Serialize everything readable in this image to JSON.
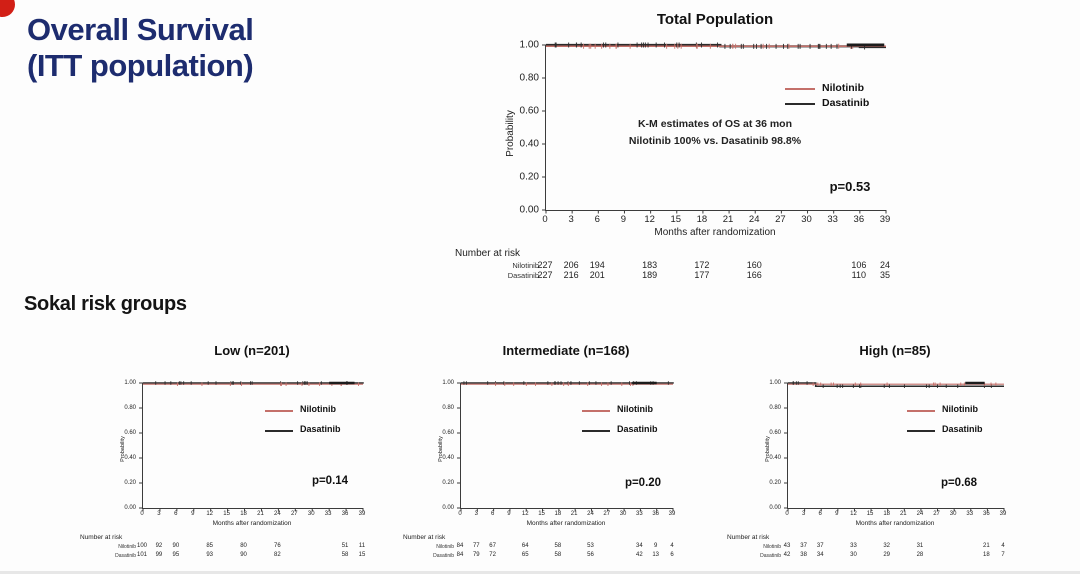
{
  "slide": {
    "title_line1": "Overall Survival",
    "title_line2": "(ITT population)",
    "section_heading": "Sokal risk groups"
  },
  "colors": {
    "accent_red": "#d21f16",
    "title_navy": "#1d2c6f",
    "nilotinib": "#c4706a",
    "dasatinib": "#2b2b2b"
  },
  "chart_data": [
    {
      "id": "total",
      "type": "line",
      "km": true,
      "title": "Total Population",
      "xlabel": "Months after randomization",
      "ylabel": "Probability",
      "xticks": [
        0,
        3,
        6,
        9,
        12,
        15,
        18,
        21,
        24,
        27,
        30,
        33,
        36,
        39
      ],
      "yticks": [
        "1.00",
        "0.80",
        "0.60",
        "0.40",
        "0.20",
        "0.00"
      ],
      "xlim": [
        0,
        39
      ],
      "ylim": [
        0,
        1
      ],
      "grid": false,
      "legend_position": "upper right inside",
      "legend": [
        "Nilotinib",
        "Dasatinib"
      ],
      "annotation": [
        "K-M estimates of OS at 36 mon",
        "Nilotinib 100% vs. Dasatinib 98.8%"
      ],
      "p_value": "p=0.53",
      "series": [
        {
          "name": "Nilotinib",
          "points": [
            [
              0,
              1.0
            ],
            [
              39,
              1.0
            ]
          ]
        },
        {
          "name": "Dasatinib",
          "points": [
            [
              0,
              1.0
            ],
            [
              20,
              0.992
            ],
            [
              36,
              0.988
            ],
            [
              39,
              0.988
            ]
          ]
        }
      ],
      "number_at_risk": {
        "label": "Number at risk",
        "months": [
          0,
          3,
          6,
          12,
          18,
          24,
          36,
          39
        ],
        "rows": [
          {
            "name": "Nilotinib",
            "values": [
              227,
              206,
              194,
              183,
              172,
              160,
              106,
              24
            ]
          },
          {
            "name": "Dasatinib",
            "values": [
              227,
              216,
              201,
              189,
              177,
              166,
              110,
              35
            ]
          }
        ]
      }
    },
    {
      "id": "low",
      "type": "line",
      "km": true,
      "title": "Low (n=201)",
      "xlabel": "Months after randomization",
      "ylabel": "Probability",
      "xticks": [
        0,
        3,
        6,
        9,
        12,
        15,
        18,
        21,
        24,
        27,
        30,
        33,
        36,
        39
      ],
      "yticks": [
        "1.00",
        "0.80",
        "0.60",
        "0.40",
        "0.20",
        "0.00"
      ],
      "xlim": [
        0,
        39
      ],
      "ylim": [
        0,
        1
      ],
      "grid": false,
      "legend_position": "upper right inside",
      "legend": [
        "Nilotinib",
        "Dasatinib"
      ],
      "p_value": "p=0.14",
      "series": [
        {
          "name": "Nilotinib",
          "points": [
            [
              0,
              1.0
            ],
            [
              39,
              1.0
            ]
          ]
        },
        {
          "name": "Dasatinib",
          "points": [
            [
              0,
              1.0
            ],
            [
              39,
              0.995
            ]
          ]
        }
      ],
      "number_at_risk": {
        "label": "Number at risk",
        "months": [
          0,
          3,
          6,
          12,
          18,
          24,
          36,
          39
        ],
        "rows": [
          {
            "name": "Nilotinib",
            "values": [
              100,
              92,
              90,
              85,
              80,
              76,
              51,
              11
            ]
          },
          {
            "name": "Dasatinib",
            "values": [
              101,
              99,
              95,
              93,
              90,
              82,
              58,
              15
            ]
          }
        ]
      }
    },
    {
      "id": "intermediate",
      "type": "line",
      "km": true,
      "title": "Intermediate (n=168)",
      "xlabel": "Months after randomization",
      "ylabel": "Probability",
      "xticks": [
        0,
        3,
        6,
        9,
        12,
        15,
        18,
        21,
        24,
        27,
        30,
        33,
        36,
        39
      ],
      "yticks": [
        "1.00",
        "0.80",
        "0.60",
        "0.40",
        "0.20",
        "0.00"
      ],
      "xlim": [
        0,
        39
      ],
      "ylim": [
        0,
        1
      ],
      "grid": false,
      "legend_position": "upper right inside",
      "legend": [
        "Nilotinib",
        "Dasatinib"
      ],
      "p_value": "p=0.20",
      "series": [
        {
          "name": "Nilotinib",
          "points": [
            [
              0,
              1.0
            ],
            [
              39,
              1.0
            ]
          ]
        },
        {
          "name": "Dasatinib",
          "points": [
            [
              0,
              1.0
            ],
            [
              39,
              0.995
            ]
          ]
        }
      ],
      "number_at_risk": {
        "label": "Number at risk",
        "months": [
          0,
          3,
          6,
          12,
          18,
          24,
          33,
          36,
          39
        ],
        "rows": [
          {
            "name": "Nilotinib",
            "values": [
              84,
              77,
              67,
              64,
              58,
              53,
              34,
              9,
              4
            ]
          },
          {
            "name": "Dasatinib",
            "values": [
              84,
              79,
              72,
              65,
              58,
              56,
              42,
              13,
              6
            ]
          }
        ]
      }
    },
    {
      "id": "high",
      "type": "line",
      "km": true,
      "title": "High (n=85)",
      "xlabel": "Months after randomization",
      "ylabel": "Probability",
      "xticks": [
        0,
        3,
        6,
        9,
        12,
        15,
        18,
        21,
        24,
        27,
        30,
        33,
        36,
        39
      ],
      "yticks": [
        "1.00",
        "0.80",
        "0.60",
        "0.40",
        "0.20",
        "0.00"
      ],
      "xlim": [
        0,
        39
      ],
      "ylim": [
        0,
        1
      ],
      "grid": false,
      "legend_position": "upper right inside",
      "legend": [
        "Nilotinib",
        "Dasatinib"
      ],
      "p_value": "p=0.68",
      "series": [
        {
          "name": "Nilotinib",
          "points": [
            [
              0,
              1.0
            ],
            [
              39,
              1.0
            ]
          ]
        },
        {
          "name": "Dasatinib",
          "points": [
            [
              0,
              1.0
            ],
            [
              5,
              0.974
            ],
            [
              39,
              0.974
            ]
          ]
        }
      ],
      "number_at_risk": {
        "label": "Number at risk",
        "months": [
          0,
          3,
          6,
          12,
          18,
          24,
          36,
          39
        ],
        "rows": [
          {
            "name": "Nilotinib",
            "values": [
              43,
              37,
              37,
              33,
              32,
              31,
              21,
              4
            ]
          },
          {
            "name": "Dasatinib",
            "values": [
              42,
              38,
              34,
              30,
              29,
              28,
              18,
              7
            ]
          }
        ]
      }
    }
  ]
}
